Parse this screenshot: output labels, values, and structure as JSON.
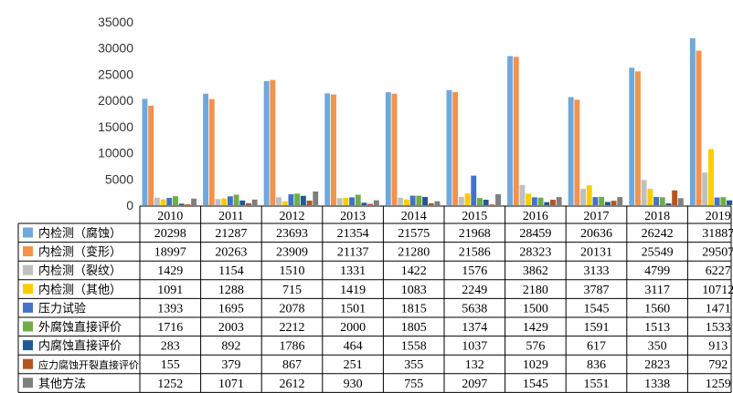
{
  "chart_data": {
    "type": "bar",
    "categories": [
      "2010",
      "2011",
      "2012",
      "2013",
      "2014",
      "2015",
      "2016",
      "2017",
      "2018",
      "2019"
    ],
    "ylim": [
      0,
      35000
    ],
    "yticks": [
      "0",
      "5000",
      "10000",
      "15000",
      "20000",
      "25000",
      "30000",
      "35000"
    ],
    "legend_placement": "data-table",
    "grid": false,
    "series": [
      {
        "name": "内检测（腐蚀）",
        "color": "#6fa8dc",
        "values": [
          20298,
          21287,
          23693,
          21354,
          21575,
          21968,
          28459,
          20636,
          26242,
          31887
        ]
      },
      {
        "name": "内检测（变形）",
        "color": "#f4914c",
        "values": [
          18997,
          20263,
          23909,
          21137,
          21280,
          21586,
          28323,
          20131,
          25549,
          29507
        ]
      },
      {
        "name": "内检测（裂纹）",
        "color": "#bfbfbf",
        "values": [
          1429,
          1154,
          1510,
          1331,
          1422,
          1576,
          3862,
          3133,
          4799,
          6227
        ]
      },
      {
        "name": "内检测（其他）",
        "color": "#ffcc00",
        "values": [
          1091,
          1288,
          715,
          1419,
          1083,
          2249,
          2180,
          3787,
          3117,
          10712
        ]
      },
      {
        "name": "压力试验",
        "color": "#4472c4",
        "values": [
          1393,
          1695,
          2078,
          1501,
          1815,
          5638,
          1500,
          1545,
          1560,
          1471
        ]
      },
      {
        "name": "外腐蚀直接评价",
        "color": "#70ad47",
        "values": [
          1716,
          2003,
          2212,
          2000,
          1805,
          1374,
          1429,
          1591,
          1513,
          1533
        ]
      },
      {
        "name": "内腐蚀直接评价",
        "color": "#1f5a96",
        "values": [
          283,
          892,
          1786,
          464,
          1558,
          1037,
          576,
          617,
          350,
          913
        ]
      },
      {
        "name": "应力腐蚀开裂直接评价",
        "color": "#b5541f",
        "values": [
          155,
          379,
          867,
          251,
          355,
          132,
          1029,
          836,
          2823,
          792
        ]
      },
      {
        "name": "其他方法",
        "color": "#7f7f7f",
        "values": [
          1252,
          1071,
          2612,
          930,
          755,
          2097,
          1545,
          1551,
          1338,
          1259
        ]
      }
    ]
  }
}
